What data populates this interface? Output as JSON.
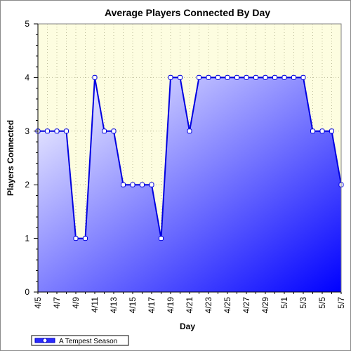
{
  "chart_data": {
    "type": "area",
    "title": "Average Players Connected By Day",
    "xlabel": "Day",
    "ylabel": "Players Connected",
    "ylim": [
      0,
      5
    ],
    "yticks": [
      "0",
      "1",
      "2",
      "3",
      "4",
      "5"
    ],
    "grid": true,
    "legend_position": "bottom-left",
    "x": [
      "4/5",
      "4/6",
      "4/7",
      "4/8",
      "4/9",
      "4/10",
      "4/11",
      "4/12",
      "4/13",
      "4/14",
      "4/15",
      "4/16",
      "4/17",
      "4/18",
      "4/19",
      "4/20",
      "4/21",
      "4/22",
      "4/23",
      "4/24",
      "4/25",
      "4/26",
      "4/27",
      "4/28",
      "4/29",
      "4/30",
      "5/1",
      "5/2",
      "5/3",
      "5/4",
      "5/5",
      "5/6",
      "5/7"
    ],
    "xtick_labels": [
      "4/5",
      "4/7",
      "4/9",
      "4/11",
      "4/13",
      "4/15",
      "4/17",
      "4/19",
      "4/21",
      "4/23",
      "4/25",
      "4/27",
      "4/29",
      "5/1",
      "5/3",
      "5/5",
      "5/7"
    ],
    "series": [
      {
        "name": "A Tempest Season",
        "values": [
          3,
          3,
          3,
          3,
          1,
          1,
          4,
          3,
          3,
          2,
          2,
          2,
          2,
          1,
          4,
          4,
          3,
          4,
          4,
          4,
          4,
          4,
          4,
          4,
          4,
          4,
          4,
          4,
          4,
          3,
          3,
          3,
          2
        ]
      }
    ],
    "colors": {
      "plot_background": "#fdfde0",
      "line": "#0000e0",
      "fill_start": "#ffffff",
      "fill_end": "#0000ff",
      "marker_fill": "#ffffff",
      "grid": "#bdbd9a"
    }
  }
}
